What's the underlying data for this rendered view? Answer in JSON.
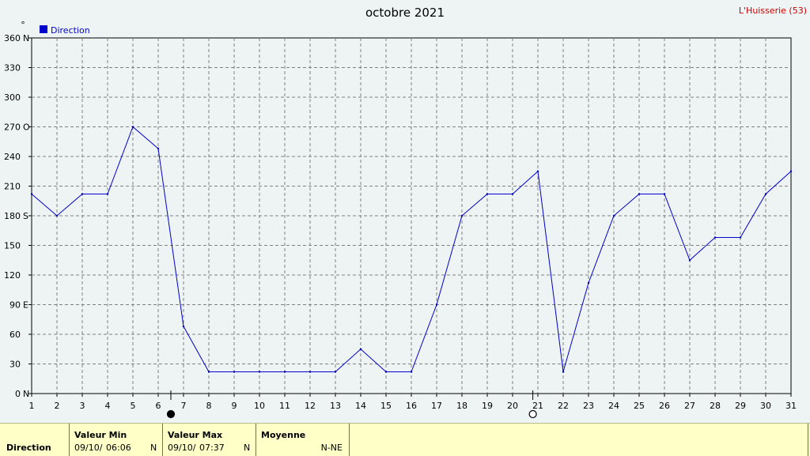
{
  "header": {
    "title": "octobre 2021",
    "station": "L'Huisserie (53)",
    "unit_mark": "°"
  },
  "legend": {
    "label": "Direction",
    "color": "#0000cc"
  },
  "chart_data": {
    "type": "line",
    "title": "octobre 2021",
    "x": [
      1,
      2,
      3,
      4,
      5,
      6,
      7,
      8,
      9,
      10,
      11,
      12,
      13,
      14,
      15,
      16,
      17,
      18,
      19,
      20,
      21,
      22,
      23,
      24,
      25,
      26,
      27,
      28,
      29,
      30,
      31
    ],
    "series": [
      {
        "name": "Direction",
        "color": "#0000cc",
        "values": [
          202,
          180,
          202,
          202,
          270,
          248,
          68,
          22,
          22,
          22,
          22,
          22,
          22,
          45,
          22,
          22,
          90,
          180,
          202,
          202,
          225,
          22,
          112,
          180,
          202,
          202,
          135,
          158,
          158,
          202,
          225
        ]
      }
    ],
    "ylim": [
      0,
      360
    ],
    "xlim": [
      1,
      31
    ],
    "y_ticks": [
      {
        "v": 0,
        "label": "0",
        "dir": "N"
      },
      {
        "v": 30,
        "label": "30",
        "dir": ""
      },
      {
        "v": 60,
        "label": "60",
        "dir": ""
      },
      {
        "v": 90,
        "label": "90",
        "dir": "E"
      },
      {
        "v": 120,
        "label": "120",
        "dir": ""
      },
      {
        "v": 150,
        "label": "150",
        "dir": ""
      },
      {
        "v": 180,
        "label": "180",
        "dir": "S"
      },
      {
        "v": 210,
        "label": "210",
        "dir": ""
      },
      {
        "v": 240,
        "label": "240",
        "dir": ""
      },
      {
        "v": 270,
        "label": "270",
        "dir": "O"
      },
      {
        "v": 300,
        "label": "300",
        "dir": ""
      },
      {
        "v": 330,
        "label": "330",
        "dir": ""
      },
      {
        "v": 360,
        "label": "360",
        "dir": "N"
      }
    ],
    "x_ticks": [
      "1",
      "2",
      "3",
      "4",
      "5",
      "6",
      "7",
      "8",
      "9",
      "10",
      "11",
      "12",
      "13",
      "14",
      "15",
      "16",
      "17",
      "18",
      "19",
      "20",
      "21",
      "22",
      "23",
      "24",
      "25",
      "26",
      "27",
      "28",
      "29",
      "30",
      "31"
    ],
    "grid": true,
    "legend_position": "top-left",
    "moon_phases": [
      {
        "day": 6.5,
        "phase": "new-moon"
      },
      {
        "day": 20.8,
        "phase": "full-moon"
      }
    ]
  },
  "footer": {
    "row_label": "Direction",
    "min": {
      "header": "Valeur Min",
      "date": "09/10/",
      "time": "06:06",
      "value": "N"
    },
    "max": {
      "header": "Valeur Max",
      "date": "09/10/",
      "time": "07:37",
      "value": "N"
    },
    "avg": {
      "header": "Moyenne",
      "value": "N-NE"
    }
  }
}
